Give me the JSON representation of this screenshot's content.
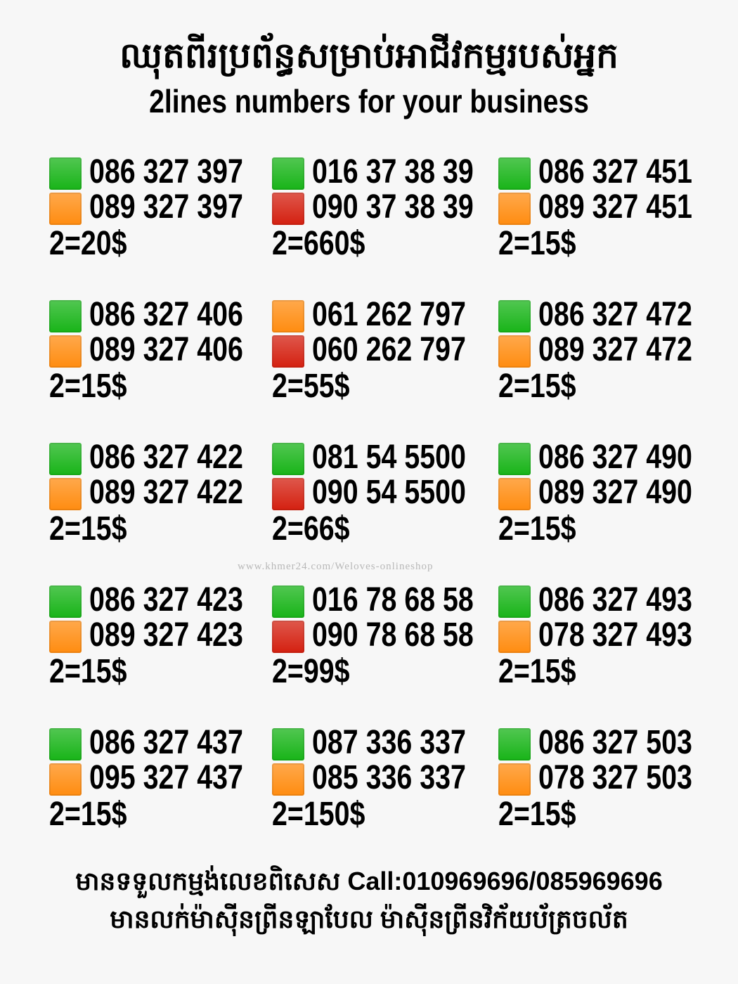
{
  "header": {
    "title_khmer": "ឈុតពីរប្រព័ន្ធសម្រាប់អាជីវកម្មរបស់អ្នក",
    "title_english": "2lines numbers for your business"
  },
  "colors": {
    "green": "#18b418",
    "orange": "#ff8c10",
    "red": "#d42010"
  },
  "groups": [
    {
      "lines": [
        {
          "color": "green",
          "number": "086 327 397"
        },
        {
          "color": "orange",
          "number": "089 327 397"
        }
      ],
      "price": "2=20$"
    },
    {
      "lines": [
        {
          "color": "green",
          "number": "016 37 38 39"
        },
        {
          "color": "red",
          "number": "090 37 38 39"
        }
      ],
      "price": "2=660$"
    },
    {
      "lines": [
        {
          "color": "green",
          "number": "086 327 451"
        },
        {
          "color": "orange",
          "number": "089 327 451"
        }
      ],
      "price": "2=15$"
    },
    {
      "lines": [
        {
          "color": "green",
          "number": "086 327 406"
        },
        {
          "color": "orange",
          "number": "089 327 406"
        }
      ],
      "price": "2=15$"
    },
    {
      "lines": [
        {
          "color": "orange",
          "number": "061 262 797"
        },
        {
          "color": "red",
          "number": "060 262 797"
        }
      ],
      "price": "2=55$"
    },
    {
      "lines": [
        {
          "color": "green",
          "number": "086 327 472"
        },
        {
          "color": "orange",
          "number": "089 327 472"
        }
      ],
      "price": "2=15$"
    },
    {
      "lines": [
        {
          "color": "green",
          "number": "086 327 422"
        },
        {
          "color": "orange",
          "number": "089 327 422"
        }
      ],
      "price": "2=15$"
    },
    {
      "lines": [
        {
          "color": "green",
          "number": "081 54 5500"
        },
        {
          "color": "red",
          "number": "090 54 5500"
        }
      ],
      "price": "2=66$"
    },
    {
      "lines": [
        {
          "color": "green",
          "number": "086 327 490"
        },
        {
          "color": "orange",
          "number": "089 327 490"
        }
      ],
      "price": "2=15$"
    },
    {
      "lines": [
        {
          "color": "green",
          "number": "086 327 423"
        },
        {
          "color": "orange",
          "number": "089 327 423"
        }
      ],
      "price": "2=15$"
    },
    {
      "lines": [
        {
          "color": "green",
          "number": "016 78 68 58"
        },
        {
          "color": "red",
          "number": "090 78 68 58"
        }
      ],
      "price": "2=99$"
    },
    {
      "lines": [
        {
          "color": "green",
          "number": "086 327 493"
        },
        {
          "color": "orange",
          "number": "078 327 493"
        }
      ],
      "price": "2=15$"
    },
    {
      "lines": [
        {
          "color": "green",
          "number": "086 327 437"
        },
        {
          "color": "orange",
          "number": "095 327 437"
        }
      ],
      "price": "2=15$"
    },
    {
      "lines": [
        {
          "color": "green",
          "number": "087 336 337"
        },
        {
          "color": "orange",
          "number": "085 336 337"
        }
      ],
      "price": "2=150$"
    },
    {
      "lines": [
        {
          "color": "green",
          "number": "086 327 503"
        },
        {
          "color": "orange",
          "number": "078 327 503"
        }
      ],
      "price": "2=15$"
    }
  ],
  "watermark": "www.khmer24.com/Weloves-onlineshop",
  "footer": {
    "line1": "មានទទួលកម្មង់លេខពិសេស Call:010969696/085969696",
    "line2": "មានលក់ម៉ាស៊ីនព្រីនឡាបែល ម៉ាស៊ីនព្រីនវិក័យប័ត្រចល័ត"
  }
}
